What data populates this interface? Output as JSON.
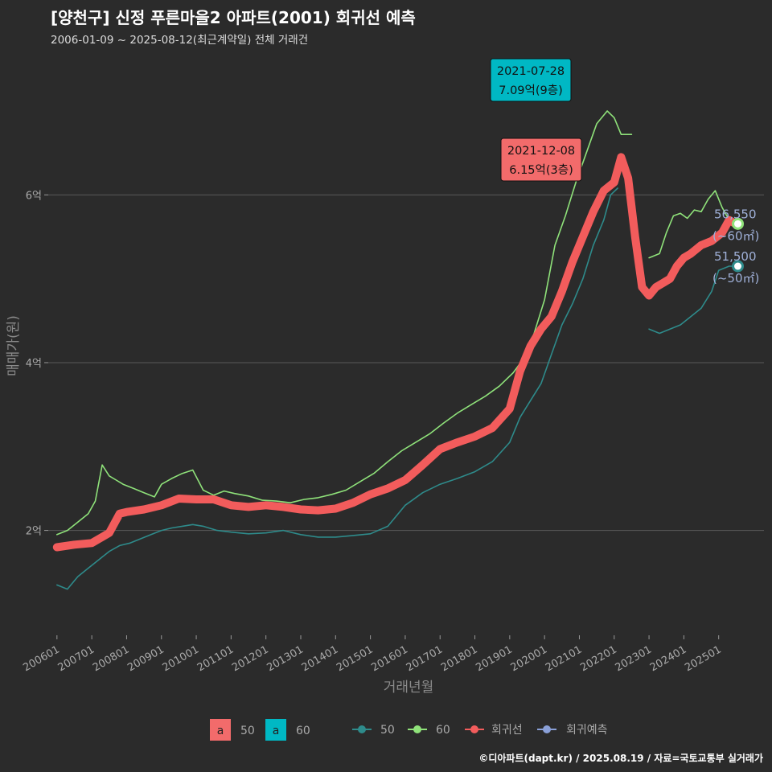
{
  "header": {
    "title": "[양천구] 신정 푸른마을2 아파트(2001) 회귀선 예측",
    "subtitle": "2006-01-09 ~ 2025-08-12(최근계약일) 전체 거래건"
  },
  "footer": {
    "credit": "©디아파트(dapt.kr) / 2025.08.19 / 자료=국토교통부 실거래가"
  },
  "colors": {
    "background": "#2b2b2b",
    "grid": "#5a5a5a",
    "series_50": "#2e8b8b",
    "series_60": "#8fe27a",
    "regression": "#f25c5c",
    "forecast": "#8aa0d8",
    "label_60_box": "#00b8c4",
    "label_50_box": "#f26b6b",
    "end_label": "#9fb0d8"
  },
  "chart_data": {
    "type": "scatter",
    "xlabel": "거래년월",
    "ylabel": "매매가(원)",
    "x_ticks": [
      "200601",
      "200701",
      "200801",
      "200901",
      "201001",
      "201101",
      "201201",
      "201301",
      "201401",
      "201501",
      "201601",
      "201701",
      "201801",
      "201901",
      "202001",
      "202101",
      "202201",
      "202301",
      "202401",
      "202501"
    ],
    "y_ticks": [
      {
        "value": 2,
        "label": "2억"
      },
      {
        "value": 4,
        "label": "4억"
      },
      {
        "value": 6,
        "label": "6억"
      }
    ],
    "xlim": [
      2005.75,
      2026.3
    ],
    "ylim": [
      0.75,
      7.7
    ],
    "grid": true,
    "legend_position": "bottom",
    "legend": {
      "text_labels": [
        {
          "letter": "a",
          "name": "50"
        },
        {
          "letter": "a",
          "name": "60"
        }
      ],
      "line_labels": [
        "50",
        "60",
        "회귀선",
        "회귀예측"
      ]
    },
    "series": [
      {
        "name": "60",
        "x": [
          2006.0,
          2006.3,
          2006.6,
          2006.9,
          2007.1,
          2007.3,
          2007.5,
          2007.7,
          2007.9,
          2008.2,
          2008.5,
          2008.8,
          2009.0,
          2009.3,
          2009.6,
          2009.9,
          2010.2,
          2010.5,
          2010.8,
          2011.1,
          2011.5,
          2011.9,
          2012.3,
          2012.7,
          2013.1,
          2013.5,
          2013.9,
          2014.3,
          2014.7,
          2015.1,
          2015.5,
          2015.9,
          2016.3,
          2016.7,
          2017.1,
          2017.5,
          2017.9,
          2018.3,
          2018.7,
          2019.1,
          2019.4,
          2019.7,
          2020.0,
          2020.3,
          2020.6,
          2020.9,
          2021.2,
          2021.5,
          2021.8,
          2022.0,
          2022.2,
          2022.5
        ],
        "y": [
          1.95,
          2.0,
          2.1,
          2.2,
          2.35,
          2.78,
          2.65,
          2.6,
          2.55,
          2.5,
          2.45,
          2.4,
          2.55,
          2.62,
          2.68,
          2.72,
          2.48,
          2.42,
          2.47,
          2.44,
          2.41,
          2.36,
          2.35,
          2.33,
          2.37,
          2.39,
          2.43,
          2.48,
          2.58,
          2.68,
          2.82,
          2.95,
          3.05,
          3.15,
          3.28,
          3.4,
          3.5,
          3.6,
          3.72,
          3.88,
          4.05,
          4.35,
          4.75,
          5.4,
          5.75,
          6.15,
          6.5,
          6.85,
          7.0,
          6.92,
          6.72,
          6.72
        ]
      },
      {
        "name": "50",
        "x": [
          2006.0,
          2006.3,
          2006.6,
          2006.9,
          2007.2,
          2007.5,
          2007.8,
          2008.1,
          2008.4,
          2008.7,
          2009.0,
          2009.3,
          2009.6,
          2009.9,
          2010.2,
          2010.6,
          2011.0,
          2011.5,
          2012.0,
          2012.5,
          2013.0,
          2013.5,
          2014.0,
          2014.5,
          2015.0,
          2015.5,
          2016.0,
          2016.5,
          2017.0,
          2017.5,
          2018.0,
          2018.5,
          2019.0,
          2019.3,
          2019.6,
          2019.9,
          2020.2,
          2020.5,
          2020.8,
          2021.1,
          2021.4,
          2021.7,
          2021.9,
          2022.1
        ],
        "y": [
          1.35,
          1.3,
          1.45,
          1.55,
          1.65,
          1.75,
          1.82,
          1.85,
          1.9,
          1.95,
          2.0,
          2.03,
          2.05,
          2.07,
          2.05,
          2.0,
          1.98,
          1.96,
          1.97,
          2.0,
          1.95,
          1.92,
          1.92,
          1.94,
          1.96,
          2.05,
          2.3,
          2.45,
          2.55,
          2.62,
          2.7,
          2.82,
          3.05,
          3.35,
          3.55,
          3.75,
          4.1,
          4.45,
          4.7,
          5.0,
          5.4,
          5.7,
          6.0,
          6.08
        ]
      },
      {
        "name": "60 (2023~)",
        "x": [
          2023.0,
          2023.3,
          2023.5,
          2023.7,
          2023.9,
          2024.1,
          2024.3,
          2024.5,
          2024.7,
          2024.9,
          2025.1,
          2025.3,
          2025.5
        ],
        "y": [
          5.25,
          5.3,
          5.55,
          5.75,
          5.78,
          5.72,
          5.82,
          5.8,
          5.95,
          6.05,
          5.85,
          5.7,
          5.66
        ]
      },
      {
        "name": "50 (2023~)",
        "x": [
          2023.0,
          2023.3,
          2023.6,
          2023.9,
          2024.2,
          2024.5,
          2024.8,
          2025.0,
          2025.3,
          2025.5
        ],
        "y": [
          4.4,
          4.35,
          4.4,
          4.45,
          4.55,
          4.65,
          4.85,
          5.1,
          5.15,
          5.15
        ]
      },
      {
        "name": "회귀선",
        "x": [
          2006.0,
          2006.5,
          2007.0,
          2007.5,
          2007.8,
          2008.0,
          2008.5,
          2009.0,
          2009.5,
          2010.0,
          2010.5,
          2011.0,
          2011.5,
          2012.0,
          2012.5,
          2013.0,
          2013.5,
          2014.0,
          2014.5,
          2015.0,
          2015.5,
          2016.0,
          2016.5,
          2017.0,
          2017.5,
          2018.0,
          2018.5,
          2019.0,
          2019.3,
          2019.6,
          2019.9,
          2020.2,
          2020.5,
          2020.8,
          2021.1,
          2021.4,
          2021.7,
          2022.0,
          2022.2,
          2022.4,
          2022.6,
          2022.8,
          2023.0,
          2023.2,
          2023.4,
          2023.6,
          2023.8,
          2024.0,
          2024.2,
          2024.5,
          2024.8,
          2025.1,
          2025.3,
          2025.5
        ],
        "y": [
          1.8,
          1.83,
          1.85,
          1.97,
          2.2,
          2.22,
          2.25,
          2.3,
          2.38,
          2.37,
          2.37,
          2.3,
          2.28,
          2.3,
          2.28,
          2.25,
          2.24,
          2.26,
          2.33,
          2.43,
          2.5,
          2.6,
          2.78,
          2.97,
          3.05,
          3.12,
          3.22,
          3.45,
          3.9,
          4.2,
          4.4,
          4.55,
          4.85,
          5.2,
          5.5,
          5.8,
          6.05,
          6.15,
          6.45,
          6.2,
          5.5,
          4.9,
          4.8,
          4.9,
          4.95,
          5.0,
          5.15,
          5.25,
          5.3,
          5.4,
          5.45,
          5.55,
          5.7,
          5.65
        ]
      }
    ],
    "annotations": [
      {
        "date": "2021-07-28",
        "value": "7.09억(9층)",
        "x": 2021.57,
        "y": 7.09
      },
      {
        "date": "2021-12-08",
        "value": "6.15억(3층)",
        "x": 2021.93,
        "y": 6.15
      }
    ],
    "end_labels": [
      {
        "value": "56,550",
        "unit": "(~60㎡)",
        "x": 2025.55,
        "y": 5.655
      },
      {
        "value": "51,500",
        "unit": "(~50㎡)",
        "x": 2025.55,
        "y": 5.15
      }
    ]
  }
}
